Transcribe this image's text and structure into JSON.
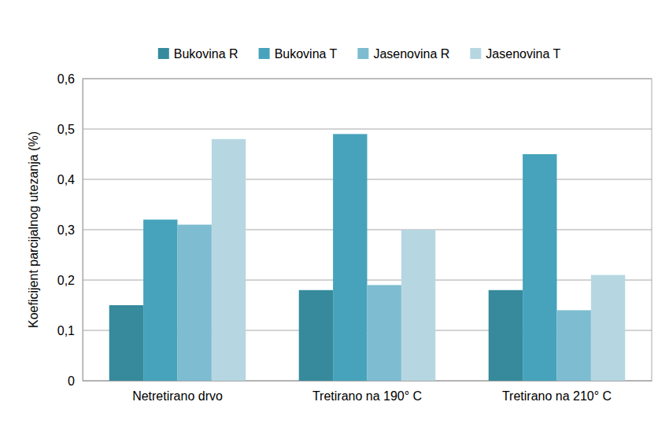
{
  "chart_data": {
    "type": "bar",
    "y_label": "Koeficijent parcijalnog utezanja (%)",
    "categories": [
      "Netretirano drvo",
      "Tretirano na 190° C",
      "Tretirano na 210° C"
    ],
    "series": [
      {
        "name": "Bukovina R",
        "color": "#368a9c",
        "values": [
          0.15,
          0.18,
          0.18
        ]
      },
      {
        "name": "Bukovina T",
        "color": "#46a3bb",
        "values": [
          0.32,
          0.49,
          0.45
        ]
      },
      {
        "name": "Jasenovina R",
        "color": "#7dbcd1",
        "values": [
          0.31,
          0.19,
          0.14
        ]
      },
      {
        "name": "Jasenovina T",
        "color": "#b6d7e2",
        "values": [
          0.48,
          0.3,
          0.21
        ]
      }
    ],
    "ylim": [
      0,
      0.6
    ],
    "yticks": [
      0,
      {
        "value": 0.1,
        "label": "0,1"
      },
      {
        "value": 0.2,
        "label": "0,2"
      },
      {
        "value": 0.3,
        "label": "0,3"
      },
      {
        "value": 0.4,
        "label": "0,4"
      },
      {
        "value": 0.5,
        "label": "0,5"
      },
      {
        "value": 0.6,
        "label": "0,6"
      }
    ],
    "grid": true,
    "legend": "top"
  }
}
